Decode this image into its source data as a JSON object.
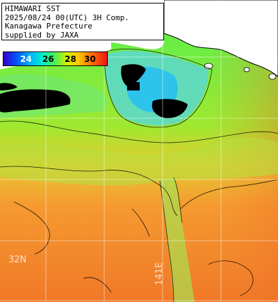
{
  "info": {
    "line1": "HIMAWARI SST",
    "line2": "2025/08/24 00(UTC) 3H Comp.",
    "line3": "Kanagawa Prefecture",
    "line4": "supplied by JAXA"
  },
  "legend": {
    "ticks": [
      {
        "label": "24",
        "color": "#ffffff"
      },
      {
        "label": "26",
        "color": "#000000"
      },
      {
        "label": "28",
        "color": "#000000"
      },
      {
        "label": "30",
        "color": "#000000"
      }
    ]
  },
  "grid": {
    "lat_label": "32N",
    "lon_label": "141E"
  },
  "colors": {
    "land": "#ffffff",
    "cloud": "#000000",
    "coastline": "#000000",
    "gridline": "#ffffff"
  }
}
